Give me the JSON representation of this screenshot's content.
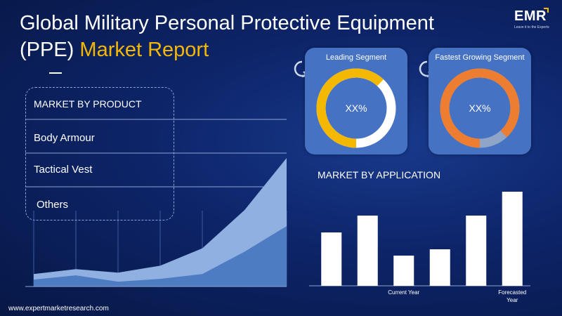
{
  "header": {
    "title_line1": "Global Military Personal Protective Equipment",
    "title_line2_prefix": "(PPE)",
    "title_line2_accent": "Market Report"
  },
  "logo": {
    "text": "EMR",
    "tagline": "Leave it to the Experts"
  },
  "product": {
    "heading": "MARKET BY PRODUCT",
    "items": [
      "Body Armour",
      "Tactical Vest",
      "Others"
    ]
  },
  "segments": {
    "leading": {
      "title": "Leading Segment",
      "value": "XX%",
      "share": 0.62,
      "arc_color": "#f5b800",
      "rest_color": "#ffffff"
    },
    "fastest": {
      "title": "Fastest Growing Segment",
      "value": "XX%",
      "share": 0.88,
      "arc_color": "#ed7d31",
      "rest_color": "#8fa5c7"
    }
  },
  "application": {
    "heading": "MARKET BY APPLICATION"
  },
  "chart_data": [
    {
      "type": "area",
      "x": [
        1,
        2,
        3,
        4,
        5,
        6,
        7
      ],
      "series": [
        {
          "values": [
            18,
            25,
            20,
            30,
            55,
            110,
            185
          ],
          "color": "#8fb0e0"
        },
        {
          "values": [
            10,
            16,
            7,
            11,
            18,
            50,
            87
          ],
          "color": "#4e7cc2"
        }
      ],
      "ylim": [
        0,
        185
      ],
      "grid": true
    },
    {
      "type": "bar",
      "categories": [
        "",
        "",
        "Current Year",
        "",
        "",
        "Forecasted Year"
      ],
      "values": [
        76,
        100,
        43,
        52,
        100,
        134
      ],
      "color": "#ffffff",
      "ylim": [
        0,
        134
      ]
    }
  ],
  "footer": {
    "url": "www.expertmarketresearch.com"
  },
  "colors": {
    "background": "#0d2468",
    "accent": "#f5b800",
    "card": "#4672c4"
  }
}
